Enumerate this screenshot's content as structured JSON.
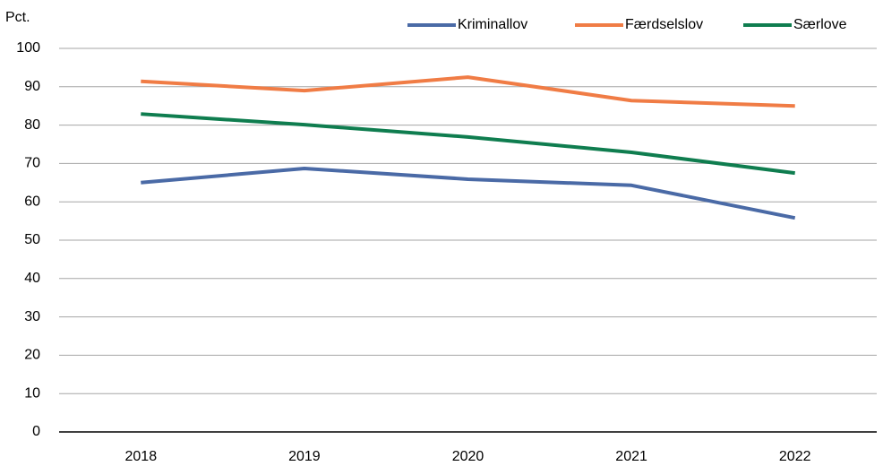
{
  "chart_data": {
    "type": "line",
    "y_label": "Pct.",
    "categories": [
      "2018",
      "2019",
      "2020",
      "2021",
      "2022"
    ],
    "series": [
      {
        "name": "Kriminallov",
        "color": "#4a6aa6",
        "values": [
          65.0,
          68.7,
          65.9,
          64.3,
          55.8
        ]
      },
      {
        "name": "Færdselslov",
        "color": "#f07c45",
        "values": [
          91.4,
          89.0,
          92.5,
          86.4,
          85.0
        ]
      },
      {
        "name": "Særlove",
        "color": "#0f7d4f",
        "values": [
          82.9,
          80.1,
          76.9,
          72.9,
          67.5
        ]
      }
    ],
    "ylim": [
      0,
      100
    ],
    "yticks": [
      0,
      10,
      20,
      30,
      40,
      50,
      60,
      70,
      80,
      90,
      100
    ],
    "grid": true,
    "legend": "upper right"
  }
}
